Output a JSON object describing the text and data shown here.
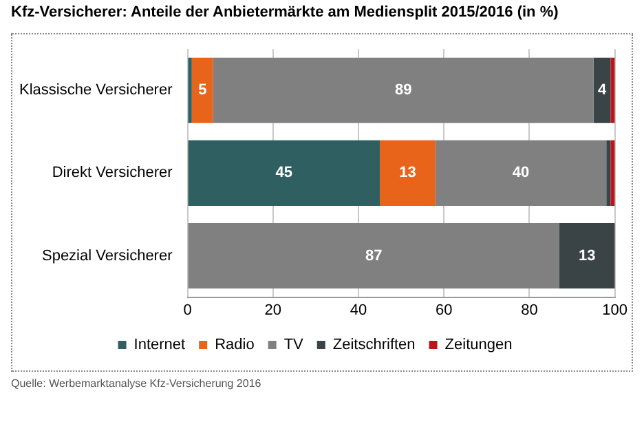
{
  "chart_data": {
    "type": "bar",
    "orientation": "horizontal",
    "stacked": true,
    "title": "Kfz-Versicherer: Anteile der Anbietermärkte am Mediensplit 2015/2016 (in %)",
    "categories": [
      "Klassische Versicherer",
      "Direkt Versicherer",
      "Spezial Versicherer"
    ],
    "series": [
      {
        "name": "Internet",
        "color": "#2f5f60",
        "values": [
          1,
          45,
          0
        ],
        "value_labels": [
          null,
          "45",
          null
        ]
      },
      {
        "name": "Radio",
        "color": "#e8641b",
        "values": [
          5,
          13,
          0
        ],
        "value_labels": [
          "5",
          "13",
          null
        ]
      },
      {
        "name": "TV",
        "color": "#808080",
        "values": [
          89,
          40,
          87
        ],
        "value_labels": [
          "89",
          "40",
          "87"
        ]
      },
      {
        "name": "Zeitschriften",
        "color": "#3a4446",
        "values": [
          4,
          1,
          13
        ],
        "value_labels": [
          "4",
          null,
          "13"
        ]
      },
      {
        "name": "Zeitungen",
        "color": "#c0141c",
        "values": [
          1,
          1,
          0
        ],
        "value_labels": [
          null,
          null,
          null
        ]
      }
    ],
    "xlim": [
      0,
      100
    ],
    "xticks": [
      0,
      20,
      40,
      60,
      80,
      100
    ],
    "grid": "x",
    "legend": "bottom",
    "annotations": [
      "Quelle: Werbemarktanalyse Kfz-Versicherung 2016"
    ]
  }
}
